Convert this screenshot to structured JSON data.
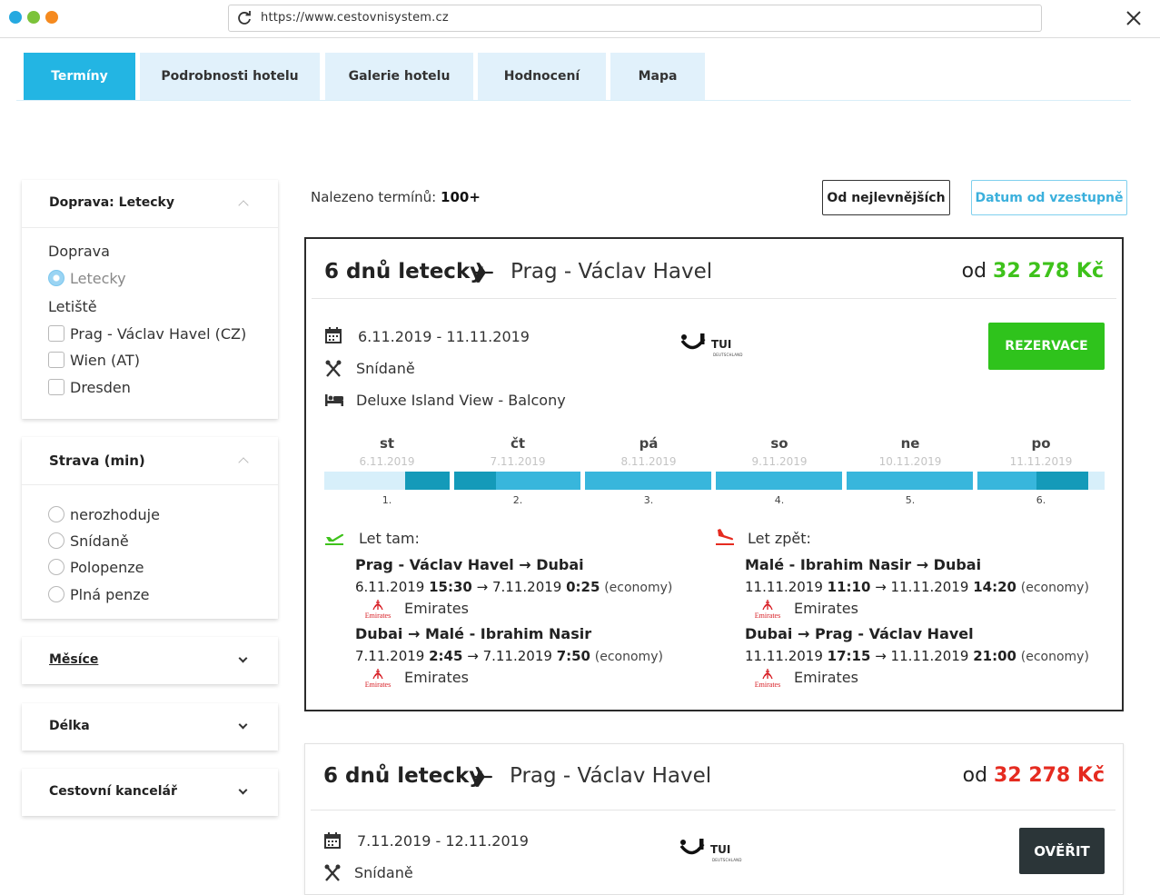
{
  "browser": {
    "url": "https://www.cestovnisystem.cz"
  },
  "tabs": [
    {
      "label": "Termíny",
      "active": true
    },
    {
      "label": "Podrobnosti hotelu",
      "active": false
    },
    {
      "label": "Galerie hotelu",
      "active": false
    },
    {
      "label": "Hodnocení",
      "active": false
    },
    {
      "label": "Mapa",
      "active": false
    }
  ],
  "sidebar": {
    "transport": {
      "header": "Doprava: Letecky",
      "section_label": "Doprava",
      "option": "Letecky",
      "airports_label": "Letiště",
      "airports": [
        "Prag - Václav Havel (CZ)",
        "Wien (AT)",
        "Dresden"
      ]
    },
    "board": {
      "header": "Strava (min)",
      "options": [
        "nerozhoduje",
        "Snídaně",
        "Polopenze",
        "Plná penze"
      ]
    },
    "months": {
      "header": "Měsíce"
    },
    "length": {
      "header": "Délka"
    },
    "agency": {
      "header": "Cestovní kancelář"
    }
  },
  "results": {
    "found_label": "Nalezeno termínů:",
    "found_count": "100+",
    "sort_price": "Od nejlevnějších",
    "sort_date": "Datum od vzestupně"
  },
  "offers": [
    {
      "title": "6 dnů letecky",
      "place": "Prag - Václav Havel",
      "price_prefix": "od",
      "price": "32 278 Kč",
      "dates": "6.11.2019 - 11.11.2019",
      "board": "Snídaně",
      "room": "Deluxe Island View - Balcony",
      "operator": {
        "name": "TUI",
        "sub": "DEUTSCHLAND"
      },
      "button": "REZERVACE",
      "days": [
        {
          "name": "st",
          "date": "6.11.2019",
          "num": "1."
        },
        {
          "name": "čt",
          "date": "7.11.2019",
          "num": "2."
        },
        {
          "name": "pá",
          "date": "8.11.2019",
          "num": "3."
        },
        {
          "name": "so",
          "date": "9.11.2019",
          "num": "4."
        },
        {
          "name": "ne",
          "date": "10.11.2019",
          "num": "5."
        },
        {
          "name": "po",
          "date": "11.11.2019",
          "num": "6."
        }
      ],
      "outbound": {
        "label": "Let tam:",
        "legs": [
          {
            "route": "Prag - Václav Havel → Dubai",
            "dep_date": "6.11.2019",
            "dep_time": "15:30",
            "arr_date": "7.11.2019",
            "arr_time": "0:25",
            "class": "(economy)",
            "airline": "Emirates",
            "logo": "Emirates"
          },
          {
            "route": "Dubai → Malé - Ibrahim Nasir",
            "dep_date": "7.11.2019",
            "dep_time": "2:45",
            "arr_date": "7.11.2019",
            "arr_time": "7:50",
            "class": "(economy)",
            "airline": "Emirates",
            "logo": "Emirates"
          }
        ]
      },
      "inbound": {
        "label": "Let zpět:",
        "legs": [
          {
            "route": "Malé - Ibrahim Nasir → Dubai",
            "dep_date": "11.11.2019",
            "dep_time": "11:10",
            "arr_date": "11.11.2019",
            "arr_time": "14:20",
            "class": "(economy)",
            "airline": "Emirates",
            "logo": "Emirates"
          },
          {
            "route": "Dubai → Prag - Václav Havel",
            "dep_date": "11.11.2019",
            "dep_time": "17:15",
            "arr_date": "11.11.2019",
            "arr_time": "21:00",
            "class": "(economy)",
            "airline": "Emirates",
            "logo": "Emirates"
          }
        ]
      }
    },
    {
      "title": "6 dnů letecky",
      "place": "Prag - Václav Havel",
      "price_prefix": "od",
      "price": "32 278 Kč",
      "dates": "7.11.2019 - 12.11.2019",
      "board": "Snídaně",
      "operator": {
        "name": "TUI",
        "sub": "DEUTSCHLAND"
      },
      "button": "OVĚŘIT"
    }
  ],
  "colors": {
    "accent": "#23b5e3",
    "tab_bg": "#e1f1fb",
    "price_green": "#3ec21b",
    "price_red": "#e52b20",
    "reserve_green": "#2fc31c",
    "verify_dark": "#2b3538",
    "timeline_light": "#d7effa",
    "timeline_mid": "#38b6dc",
    "timeline_dark": "#149ab9"
  },
  "icons": [
    "reload-icon",
    "close-icon",
    "plane-icon",
    "calendar-icon",
    "cutlery-icon",
    "bed-icon",
    "takeoff-icon",
    "landing-icon",
    "chevron-up-icon",
    "chevron-down-icon"
  ]
}
